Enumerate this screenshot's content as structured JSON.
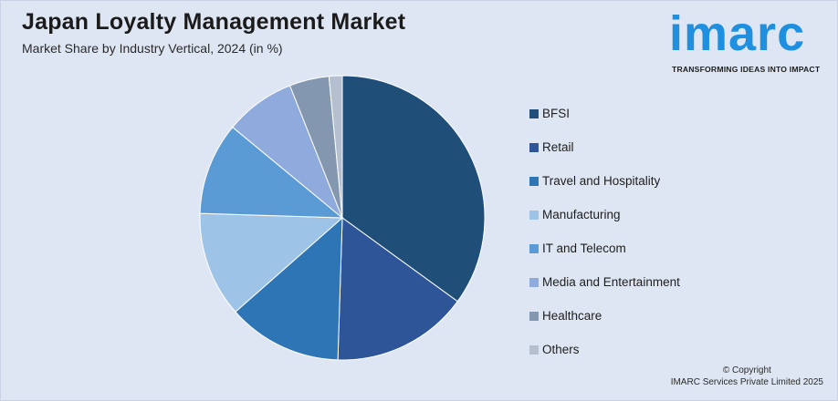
{
  "header": {
    "title": "Japan Loyalty Management Market",
    "subtitle": "Market Share by Industry Vertical, 2024 (in %)"
  },
  "logo": {
    "wordmark": "imarc",
    "tagline": "TRANSFORMING IDEAS INTO IMPACT",
    "color": "#1f8fe0"
  },
  "footer": {
    "line1": "© Copyright",
    "line2": "IMARC Services Private Limited 2025"
  },
  "chart_data": {
    "type": "pie",
    "title": "Japan Loyalty Management Market",
    "subtitle": "Market Share by Industry Vertical, 2024 (in %)",
    "legend_position": "right",
    "start_angle_deg": 0,
    "direction": "clockwise",
    "slices": [
      {
        "label": "BFSI",
        "value": 35,
        "color": "#1f4e79"
      },
      {
        "label": "Retail",
        "value": 15.5,
        "color": "#2e5597"
      },
      {
        "label": "Travel and Hospitality",
        "value": 13,
        "color": "#2e75b6"
      },
      {
        "label": "Manufacturing",
        "value": 12,
        "color": "#9dc3e6"
      },
      {
        "label": "IT and Telecom",
        "value": 10.5,
        "color": "#5b9bd5"
      },
      {
        "label": "Media and Entertainment",
        "value": 8,
        "color": "#8faadc"
      },
      {
        "label": "Healthcare",
        "value": 4.5,
        "color": "#8497b0"
      },
      {
        "label": "Others",
        "value": 1.5,
        "color": "#b4bfcf"
      }
    ]
  }
}
